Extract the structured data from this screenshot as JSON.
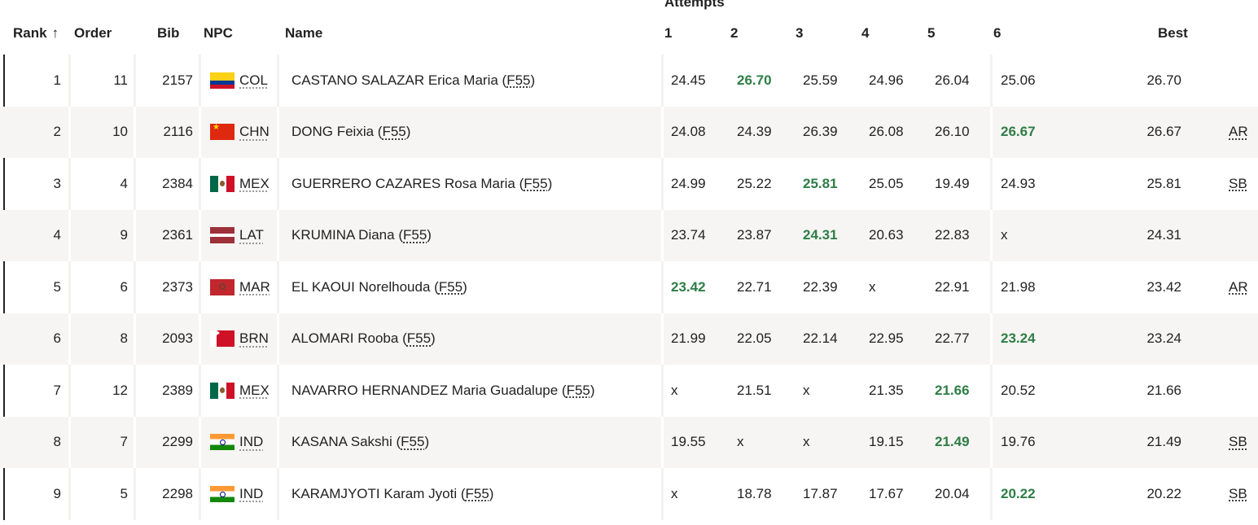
{
  "header": {
    "attempts_title": "Attempts",
    "rank": "Rank",
    "order": "Order",
    "bib": "Bib",
    "npc": "NPC",
    "name": "Name",
    "attempt_labels": [
      "1",
      "2",
      "3",
      "4",
      "5",
      "6"
    ],
    "best": "Best"
  },
  "flag_colors": {
    "COL": [
      "#fcd116",
      "#003893",
      "#ce1126"
    ],
    "CHN": [
      "#de2910",
      "#ffde00"
    ],
    "MEX": [
      "#006847",
      "#ffffff",
      "#ce1126"
    ],
    "LAT": [
      "#9e3039",
      "#ffffff"
    ],
    "MAR": [
      "#c1272d",
      "#006233"
    ],
    "BRN": [
      "#ffffff",
      "#ce1126"
    ],
    "IND": [
      "#ff9933",
      "#ffffff",
      "#138808"
    ]
  },
  "highlight_color": "#2e7d46",
  "rows": [
    {
      "rank": "1",
      "order": "11",
      "bib": "2157",
      "npc": "COL",
      "name": "CASTANO SALAZAR Erica Maria",
      "class": "F55",
      "attempts": [
        "24.45",
        "26.70",
        "25.59",
        "24.96",
        "26.04",
        "25.06"
      ],
      "best_index": 1,
      "best": "26.70",
      "record": ""
    },
    {
      "rank": "2",
      "order": "10",
      "bib": "2116",
      "npc": "CHN",
      "name": "DONG Feixia",
      "class": "F55",
      "attempts": [
        "24.08",
        "24.39",
        "26.39",
        "26.08",
        "26.10",
        "26.67"
      ],
      "best_index": 5,
      "best": "26.67",
      "record": "AR"
    },
    {
      "rank": "3",
      "order": "4",
      "bib": "2384",
      "npc": "MEX",
      "name": "GUERRERO CAZARES Rosa Maria",
      "class": "F55",
      "attempts": [
        "24.99",
        "25.22",
        "25.81",
        "25.05",
        "19.49",
        "24.93"
      ],
      "best_index": 2,
      "best": "25.81",
      "record": "SB"
    },
    {
      "rank": "4",
      "order": "9",
      "bib": "2361",
      "npc": "LAT",
      "name": "KRUMINA Diana",
      "class": "F55",
      "attempts": [
        "23.74",
        "23.87",
        "24.31",
        "20.63",
        "22.83",
        "x"
      ],
      "best_index": 2,
      "best": "24.31",
      "record": ""
    },
    {
      "rank": "5",
      "order": "6",
      "bib": "2373",
      "npc": "MAR",
      "name": "EL KAOUI Norelhouda",
      "class": "F55",
      "attempts": [
        "23.42",
        "22.71",
        "22.39",
        "x",
        "22.91",
        "21.98"
      ],
      "best_index": 0,
      "best": "23.42",
      "record": "AR"
    },
    {
      "rank": "6",
      "order": "8",
      "bib": "2093",
      "npc": "BRN",
      "name": "ALOMARI Rooba",
      "class": "F55",
      "attempts": [
        "21.99",
        "22.05",
        "22.14",
        "22.95",
        "22.77",
        "23.24"
      ],
      "best_index": 5,
      "best": "23.24",
      "record": ""
    },
    {
      "rank": "7",
      "order": "12",
      "bib": "2389",
      "npc": "MEX",
      "name": "NAVARRO HERNANDEZ Maria Guadalupe",
      "class": "F55",
      "attempts": [
        "x",
        "21.51",
        "x",
        "21.35",
        "21.66",
        "20.52"
      ],
      "best_index": 4,
      "best": "21.66",
      "record": ""
    },
    {
      "rank": "8",
      "order": "7",
      "bib": "2299",
      "npc": "IND",
      "name": "KASANA Sakshi",
      "class": "F55",
      "attempts": [
        "19.55",
        "x",
        "x",
        "19.15",
        "21.49",
        "19.76"
      ],
      "best_index": 4,
      "best": "21.49",
      "record": "SB"
    },
    {
      "rank": "9",
      "order": "5",
      "bib": "2298",
      "npc": "IND",
      "name": "KARAMJYOTI Karam Jyoti",
      "class": "F55",
      "attempts": [
        "x",
        "18.78",
        "17.87",
        "17.67",
        "20.04",
        "20.22"
      ],
      "best_index": 5,
      "best": "20.22",
      "record": "SB"
    }
  ]
}
